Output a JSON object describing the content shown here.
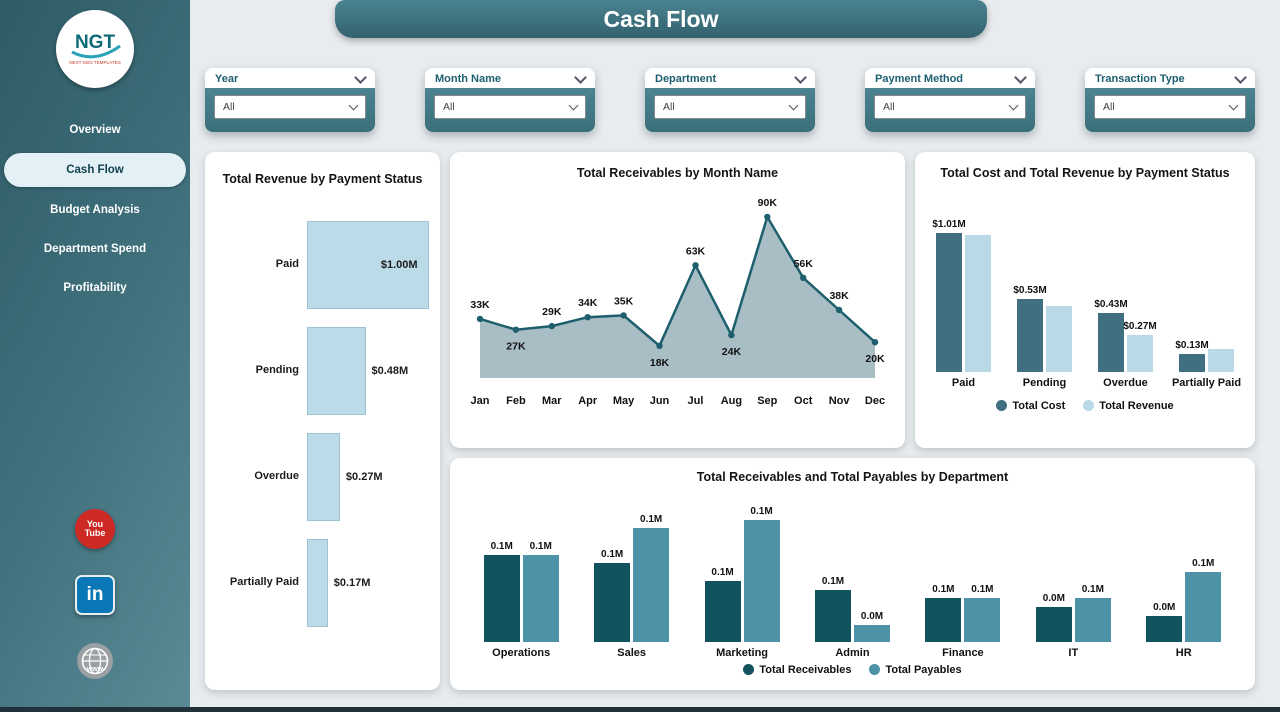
{
  "app": {
    "title": "Cash Flow"
  },
  "sidebar": {
    "logo": {
      "text": "NGT",
      "subtext": "NEXT GEN TEMPLATES"
    },
    "items": [
      {
        "label": "Overview",
        "active": false
      },
      {
        "label": "Cash Flow",
        "active": true
      },
      {
        "label": "Budget Analysis",
        "active": false
      },
      {
        "label": "Department Spend",
        "active": false
      },
      {
        "label": "Profitability",
        "active": false
      }
    ],
    "social": [
      {
        "name": "youtube",
        "text1": "You",
        "text2": "Tube"
      },
      {
        "name": "linkedin",
        "text": "in"
      },
      {
        "name": "website",
        "text": "www"
      }
    ]
  },
  "filters": [
    {
      "label": "Year",
      "value": "All"
    },
    {
      "label": "Month Name",
      "value": "All"
    },
    {
      "label": "Department",
      "value": "All"
    },
    {
      "label": "Payment Method",
      "value": "All"
    },
    {
      "label": "Transaction Type",
      "value": "All"
    }
  ],
  "colors": {
    "teal_dark": "#33626e",
    "teal_mid": "#4a8290",
    "light_blue": "#bcdbe8",
    "cost": "#3f6f80",
    "revenue": "#b9d9e6",
    "receivables": "#12525f",
    "payables": "#4e92a8"
  },
  "chart_data": [
    {
      "id": "revenue_by_status",
      "type": "bar",
      "orientation": "horizontal",
      "title": "Total Revenue by Payment Status",
      "categories": [
        "Paid",
        "Pending",
        "Overdue",
        "Partially Paid"
      ],
      "values": [
        1.0,
        0.48,
        0.27,
        0.17
      ],
      "labels": [
        "$1.00M",
        "$0.48M",
        "$0.27M",
        "$0.17M"
      ],
      "xlabel": "",
      "ylabel": "",
      "xlim": [
        0,
        1.05
      ],
      "grid": false,
      "bar_color": "#bcdbe8"
    },
    {
      "id": "receivables_by_month",
      "type": "area",
      "title": "Total Receivables by Month Name",
      "x": [
        "Jan",
        "Feb",
        "Mar",
        "Apr",
        "May",
        "Jun",
        "Jul",
        "Aug",
        "Sep",
        "Oct",
        "Nov",
        "Dec"
      ],
      "values": [
        33,
        27,
        29,
        34,
        35,
        18,
        63,
        24,
        90,
        56,
        38,
        20
      ],
      "labels": [
        "33K",
        "27K",
        "29K",
        "34K",
        "35K",
        "18K",
        "63K",
        "24K",
        "90K",
        "56K",
        "38K",
        "20K"
      ],
      "xlabel": "",
      "ylabel": "",
      "ylim": [
        0,
        95
      ],
      "grid": false,
      "area_color": "#a9bdc4",
      "line_color": "#1e5f6e"
    },
    {
      "id": "cost_revenue_by_status",
      "type": "bar",
      "title": "Total Cost and Total Revenue by Payment Status",
      "categories": [
        "Paid",
        "Pending",
        "Overdue",
        "Partially Paid"
      ],
      "series": [
        {
          "name": "Total Cost",
          "color": "#3f6f80",
          "values": [
            1.01,
            0.53,
            0.43,
            0.13
          ],
          "labels": [
            "$1.01M",
            "$0.53M",
            "$0.43M",
            "$0.13M"
          ]
        },
        {
          "name": "Total Revenue",
          "color": "#b9d9e6",
          "values": [
            1.0,
            0.48,
            0.27,
            0.17
          ],
          "labels": [
            "",
            "",
            "$0.27M",
            ""
          ]
        }
      ],
      "ylim": [
        0,
        1.15
      ],
      "grid": false,
      "legend_position": "bottom"
    },
    {
      "id": "recv_pay_by_dept",
      "type": "bar",
      "title": "Total Receivables and Total Payables by Department",
      "categories": [
        "Operations",
        "Sales",
        "Marketing",
        "Admin",
        "Finance",
        "IT",
        "HR"
      ],
      "series": [
        {
          "name": "Total Receivables",
          "color": "#12525f",
          "values": [
            0.1,
            0.09,
            0.07,
            0.06,
            0.05,
            0.04,
            0.03
          ],
          "labels": [
            "0.1M",
            "0.1M",
            "0.1M",
            "0.1M",
            "0.1M",
            "0.0M",
            "0.0M"
          ]
        },
        {
          "name": "Total Payables",
          "color": "#4e92a8",
          "values": [
            0.1,
            0.13,
            0.14,
            0.02,
            0.05,
            0.05,
            0.08
          ],
          "labels": [
            "0.1M",
            "0.1M",
            "0.1M",
            "0.0M",
            "0.1M",
            "0.1M",
            "0.1M"
          ]
        }
      ],
      "ylim": [
        0,
        0.16
      ],
      "grid": false,
      "legend_position": "bottom"
    }
  ]
}
